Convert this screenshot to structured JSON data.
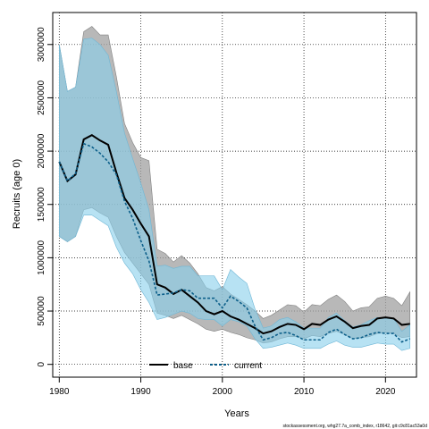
{
  "chart_data": {
    "type": "line",
    "xlabel": "Years",
    "ylabel": "Recruits (age 0)",
    "footer": "stockassessment.org, whg27.7a_comb_index, r18642, git:c9c81ac53a0d",
    "xlim": [
      1979.2,
      2023.8
    ],
    "ylim": [
      -120000,
      3300000
    ],
    "x_ticks": [
      1980,
      1990,
      2000,
      2010,
      2020
    ],
    "y_ticks": [
      0,
      500000,
      1000000,
      1500000,
      2000000,
      2500000,
      3000000
    ],
    "x_tick_labels": [
      "1980",
      "1990",
      "2000",
      "2010",
      "2020"
    ],
    "y_tick_labels": [
      "0",
      "500000",
      "1000000",
      "1500000",
      "2000000",
      "2500000",
      "3000000"
    ],
    "grid": true,
    "legend_position": "bottom-center",
    "colors": {
      "base_line": "#000000",
      "base_band": "#a0a0a0",
      "current_line": "#0c5f8a",
      "current_band": "#87ceeb"
    },
    "x": [
      1980,
      1981,
      1982,
      1983,
      1984,
      1985,
      1986,
      1987,
      1988,
      1989,
      1990,
      1991,
      1992,
      1993,
      1994,
      1995,
      1996,
      1997,
      1998,
      1999,
      2000,
      2001,
      2002,
      2003,
      2004,
      2005,
      2006,
      2007,
      2008,
      2009,
      2010,
      2011,
      2012,
      2013,
      2014,
      2015,
      2016,
      2017,
      2018,
      2019,
      2020,
      2021,
      2022,
      2023
    ],
    "series": [
      {
        "name": "base",
        "style": "solid",
        "values": [
          1900000,
          1720000,
          1780000,
          2110000,
          2150000,
          2100000,
          2060000,
          1800000,
          1560000,
          1450000,
          1320000,
          1200000,
          750000,
          720000,
          660000,
          700000,
          640000,
          580000,
          500000,
          470000,
          500000,
          450000,
          420000,
          380000,
          340000,
          290000,
          310000,
          350000,
          380000,
          370000,
          330000,
          380000,
          370000,
          420000,
          450000,
          400000,
          340000,
          360000,
          370000,
          430000,
          440000,
          430000,
          370000,
          380000
        ],
        "lower": [
          1200000,
          1150000,
          1200000,
          1450000,
          1470000,
          1420000,
          1380000,
          1200000,
          1050000,
          950000,
          850000,
          750000,
          480000,
          460000,
          430000,
          460000,
          420000,
          380000,
          330000,
          310000,
          330000,
          300000,
          280000,
          250000,
          230000,
          200000,
          210000,
          240000,
          260000,
          260000,
          240000,
          270000,
          260000,
          290000,
          310000,
          280000,
          240000,
          250000,
          260000,
          290000,
          300000,
          290000,
          250000,
          260000
        ],
        "upper": [
          3000000,
          2560000,
          2600000,
          3120000,
          3170000,
          3090000,
          3090000,
          2700000,
          2260000,
          2080000,
          1940000,
          1910000,
          1080000,
          1040000,
          960000,
          1020000,
          950000,
          850000,
          720000,
          690000,
          730000,
          660000,
          610000,
          560000,
          500000,
          430000,
          460000,
          510000,
          560000,
          550000,
          490000,
          560000,
          550000,
          610000,
          650000,
          590000,
          500000,
          530000,
          540000,
          620000,
          640000,
          620000,
          550000,
          680000
        ]
      },
      {
        "name": "current",
        "style": "dashed",
        "values": [
          1900000,
          1720000,
          1790000,
          2070000,
          2040000,
          1980000,
          1900000,
          1780000,
          1530000,
          1370000,
          1160000,
          970000,
          650000,
          660000,
          670000,
          700000,
          690000,
          620000,
          620000,
          620000,
          530000,
          640000,
          590000,
          530000,
          360000,
          230000,
          250000,
          290000,
          300000,
          270000,
          230000,
          230000,
          230000,
          300000,
          330000,
          280000,
          240000,
          250000,
          280000,
          300000,
          290000,
          290000,
          210000,
          240000
        ],
        "lower": [
          1200000,
          1150000,
          1200000,
          1400000,
          1400000,
          1350000,
          1300000,
          1100000,
          950000,
          850000,
          700000,
          580000,
          420000,
          440000,
          470000,
          500000,
          480000,
          430000,
          420000,
          420000,
          360000,
          420000,
          400000,
          360000,
          240000,
          150000,
          160000,
          180000,
          200000,
          180000,
          150000,
          150000,
          150000,
          190000,
          220000,
          180000,
          160000,
          160000,
          180000,
          200000,
          190000,
          190000,
          130000,
          150000
        ],
        "upper": [
          3000000,
          2560000,
          2600000,
          3050000,
          3060000,
          3000000,
          2900000,
          2560000,
          2170000,
          1930000,
          1700000,
          1450000,
          920000,
          930000,
          900000,
          920000,
          920000,
          830000,
          830000,
          830000,
          700000,
          890000,
          820000,
          760000,
          520000,
          340000,
          360000,
          420000,
          440000,
          400000,
          340000,
          340000,
          340000,
          440000,
          480000,
          410000,
          350000,
          370000,
          410000,
          440000,
          430000,
          430000,
          310000,
          370000
        ]
      }
    ]
  }
}
